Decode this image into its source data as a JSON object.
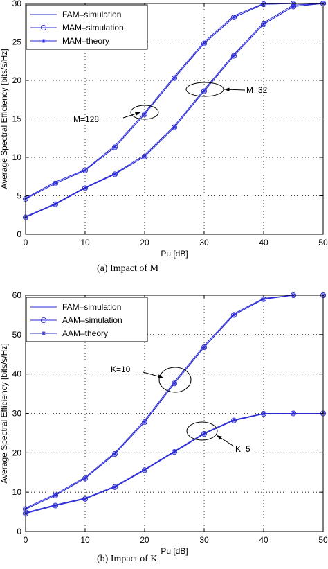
{
  "chart_data": [
    {
      "type": "line",
      "caption": "(a) Impact of M",
      "xlabel": "Pu [dB]",
      "ylabel": "Average Spectral Efficiency [bits/s/Hz]",
      "xlim": [
        0,
        50
      ],
      "ylim": [
        0,
        30
      ],
      "xticks": [
        0,
        10,
        20,
        30,
        40,
        50
      ],
      "yticks": [
        0,
        5,
        10,
        15,
        20,
        25,
        30
      ],
      "grid": true,
      "legend_position": "top-left",
      "x": [
        0,
        5,
        10,
        15,
        20,
        25,
        30,
        35,
        40,
        45,
        50
      ],
      "series": [
        {
          "name": "FAM–simulation",
          "marker": "none",
          "group": "M=128",
          "values": [
            4.7,
            6.8,
            8.4,
            11.5,
            15.8,
            20.5,
            25.0,
            28.4,
            30.0,
            30.0,
            30.0
          ]
        },
        {
          "name": "MAM–simulation",
          "marker": "circle",
          "group": "M=128",
          "values": [
            4.6,
            6.6,
            8.3,
            11.3,
            15.6,
            20.3,
            24.8,
            28.2,
            29.9,
            30.0,
            30.0
          ]
        },
        {
          "name": "MAM–theory",
          "marker": "star",
          "group": "M=128",
          "values": [
            4.6,
            6.6,
            8.3,
            11.3,
            15.6,
            20.3,
            24.8,
            28.2,
            29.9,
            30.0,
            30.0
          ]
        },
        {
          "name": "",
          "marker": "none",
          "group": "M=32",
          "values": [
            2.3,
            4.0,
            6.1,
            7.9,
            10.3,
            14.1,
            18.8,
            23.4,
            27.5,
            29.8,
            30.0
          ]
        },
        {
          "name": "",
          "marker": "circle",
          "group": "M=32",
          "values": [
            2.2,
            3.9,
            6.0,
            7.8,
            10.1,
            13.9,
            18.6,
            23.2,
            27.3,
            29.6,
            30.0
          ]
        },
        {
          "name": "",
          "marker": "star",
          "group": "M=32",
          "values": [
            2.2,
            3.9,
            6.0,
            7.8,
            10.1,
            13.9,
            18.6,
            23.2,
            27.3,
            29.6,
            30.0
          ]
        }
      ],
      "annotations": [
        {
          "text": "M=128",
          "x": 20,
          "y": 15.6
        },
        {
          "text": "M=32",
          "x": 30,
          "y": 18.6
        }
      ]
    },
    {
      "type": "line",
      "caption": "(b) Impact of K",
      "xlabel": "Pu [dB]",
      "ylabel": "Average Spectral Efficiency [bits/s/Hz]",
      "xlim": [
        0,
        50
      ],
      "ylim": [
        0,
        60
      ],
      "xticks": [
        0,
        10,
        20,
        30,
        40,
        50
      ],
      "yticks": [
        0,
        10,
        20,
        30,
        40,
        50,
        60
      ],
      "grid": true,
      "legend_position": "top-left",
      "x": [
        0,
        5,
        10,
        15,
        20,
        25,
        30,
        35,
        40,
        45,
        50
      ],
      "series": [
        {
          "name": "FAM–simulation",
          "marker": "none",
          "group": "K=10",
          "values": [
            6.0,
            9.5,
            13.8,
            20.0,
            28.2,
            38.0,
            47.2,
            55.3,
            59.2,
            60.0,
            60.0
          ]
        },
        {
          "name": "AAM–simulation",
          "marker": "circle",
          "group": "K=10",
          "values": [
            5.7,
            9.2,
            13.5,
            19.7,
            27.8,
            37.6,
            46.8,
            55.0,
            59.0,
            60.0,
            60.0
          ]
        },
        {
          "name": "AAM–theory",
          "marker": "star",
          "group": "K=10",
          "values": [
            5.7,
            9.2,
            13.5,
            19.7,
            27.8,
            37.6,
            46.8,
            55.0,
            59.0,
            60.0,
            60.0
          ]
        },
        {
          "name": "",
          "marker": "none",
          "group": "K=5",
          "values": [
            4.8,
            6.8,
            8.5,
            11.5,
            15.8,
            20.4,
            25.0,
            28.4,
            30.0,
            30.0,
            30.0
          ]
        },
        {
          "name": "",
          "marker": "circle",
          "group": "K=5",
          "values": [
            4.6,
            6.6,
            8.3,
            11.3,
            15.6,
            20.2,
            24.8,
            28.2,
            29.9,
            30.0,
            30.0
          ]
        },
        {
          "name": "",
          "marker": "star",
          "group": "K=5",
          "values": [
            4.6,
            6.6,
            8.3,
            11.3,
            15.6,
            20.2,
            24.8,
            28.2,
            29.9,
            30.0,
            30.0
          ]
        }
      ],
      "annotations": [
        {
          "text": "K=10",
          "x": 25,
          "y": 37.6
        },
        {
          "text": "K=5",
          "x": 30,
          "y": 24.8
        }
      ]
    }
  ],
  "colors": {
    "line": "#2a2ad4",
    "axis": "#000000",
    "grid": "#000000"
  }
}
